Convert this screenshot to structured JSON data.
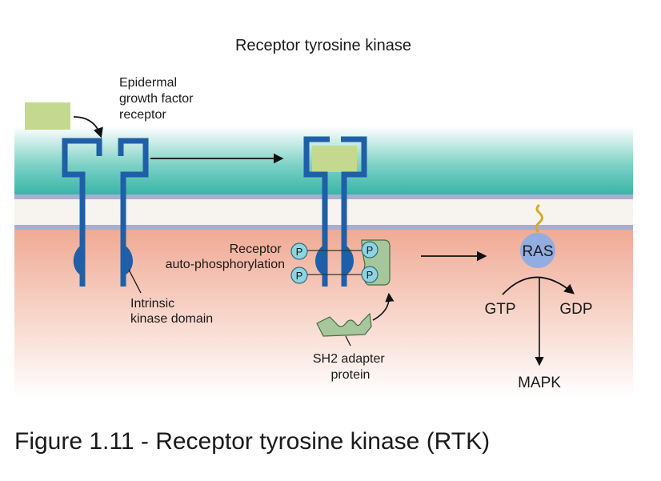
{
  "diagram": {
    "title": "Receptor tyrosine kinase",
    "labels": {
      "egfr_line1": "Epidermal",
      "egfr_line2": "growth factor",
      "egfr_line3": "receptor",
      "kinase_line1": "Intrinsic",
      "kinase_line2": "kinase domain",
      "autophos_line1": "Receptor",
      "autophos_line2": "auto-phosphorylation",
      "sh2_line1": "SH2 adapter",
      "sh2_line2": "protein",
      "ras": "RAS",
      "gtp": "GTP",
      "gdp": "GDP",
      "mapk": "MAPK",
      "phosphate": "P"
    },
    "colors": {
      "receptor": "#1e5fa8",
      "ligand": "#c4d98f",
      "membrane_outer": "#3bb9ad",
      "membrane_core": "#f7f3ee",
      "membrane_edge": "#9aa4c8",
      "cytoplasm": "#f0ad98",
      "ras": "#92aee0",
      "phosphate": "#8fd3e3",
      "sh2": "#a6c79c"
    }
  },
  "caption": "Figure 1.11 - Receptor tyrosine kinase (RTK)"
}
